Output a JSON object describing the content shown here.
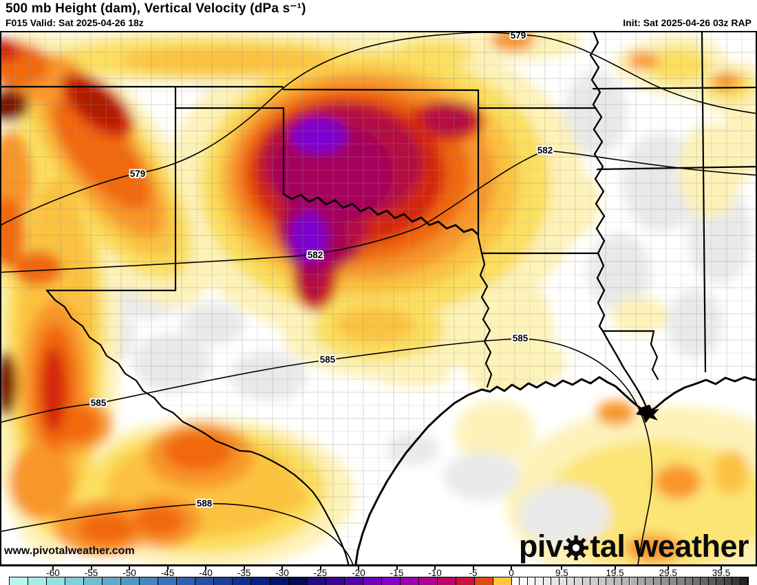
{
  "header": {
    "title": "500 mb Height (dam), Vertical Velocity (dPa s⁻¹)",
    "valid": "F015 Valid: Sat 2025-04-26 18z",
    "init": "Init: Sat 2025-04-26 03z RAP"
  },
  "map": {
    "watermark": "www.pivotalweather.com",
    "logo": {
      "part1": "piv",
      "part2": "tal",
      "part3": "weather"
    },
    "height_contour_values_dam": [
      579,
      582,
      585,
      588
    ],
    "contour_labels": [
      {
        "text": "579"
      },
      {
        "text": "579"
      },
      {
        "text": "582"
      },
      {
        "text": "582"
      },
      {
        "text": "585"
      },
      {
        "text": "585"
      },
      {
        "text": "585"
      },
      {
        "text": "588"
      }
    ]
  },
  "colorbar": {
    "ticks": [
      {
        "label": "-60",
        "value": -60
      },
      {
        "label": "-55",
        "value": -55
      },
      {
        "label": "-50",
        "value": -50
      },
      {
        "label": "-45",
        "value": -45
      },
      {
        "label": "-40",
        "value": -40
      },
      {
        "label": "-35",
        "value": -35
      },
      {
        "label": "-30",
        "value": -30
      },
      {
        "label": "-25",
        "value": -25
      },
      {
        "label": "-20",
        "value": -20
      },
      {
        "label": "-15",
        "value": -15
      },
      {
        "label": "-10",
        "value": -10
      },
      {
        "label": "-5",
        "value": -5
      },
      {
        "label": "0",
        "value": 0
      },
      {
        "label": "9.5",
        "value": 9.5
      },
      {
        "label": "19.5",
        "value": 19.5
      },
      {
        "label": "29.5",
        "value": 29.5
      },
      {
        "label": "39.5",
        "value": 39.5
      }
    ],
    "negative_colors": [
      "#baf5ef",
      "#a8ece8",
      "#96e0e2",
      "#84cdd9",
      "#74bad1",
      "#64a8c9",
      "#5696c1",
      "#4884b9",
      "#3c72b1",
      "#3060a9",
      "#264ea1",
      "#1c3e97",
      "#122e8d",
      "#0a1f81",
      "#051369",
      "#060a4e",
      "#200b80",
      "#380796",
      "#5005aa",
      "#6a03bc",
      "#8401c8",
      "#9d00b0",
      "#af0090",
      "#bd0468",
      "#cc1240",
      "#e04814",
      "#fbc93e"
    ],
    "positive_colors": [
      "#ffffff",
      "#fafafa",
      "#f5f5f5",
      "#f0f0f0",
      "#ebebeb",
      "#e6e6e6",
      "#e1e1e1",
      "#dcdcdc",
      "#d6d6d6",
      "#d1d1d1",
      "#cccccc",
      "#c6c6c6",
      "#c0c0c0",
      "#bababa",
      "#b4b4b4",
      "#aeaeae",
      "#a7a7a7",
      "#a0a0a0",
      "#999999",
      "#919191",
      "#898989",
      "#818181",
      "#787878",
      "#6f6f6f",
      "#656565",
      "#5b5b5b",
      "#505050",
      "#454545",
      "#383838",
      "#242424"
    ]
  }
}
